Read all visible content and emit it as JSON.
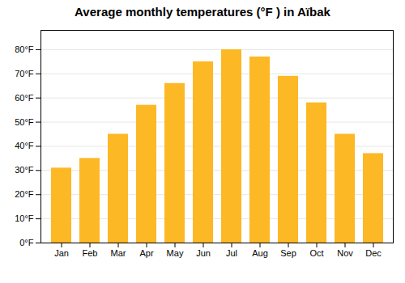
{
  "chart_data": {
    "type": "bar",
    "title": "Average monthly temperatures (°F ) in Aïbak",
    "categories": [
      "Jan",
      "Feb",
      "Mar",
      "Apr",
      "May",
      "Jun",
      "Jul",
      "Aug",
      "Sep",
      "Oct",
      "Nov",
      "Dec"
    ],
    "values": [
      31,
      35,
      45,
      57,
      66,
      75,
      80,
      77,
      69,
      58,
      45,
      37
    ],
    "color": "#FDB825",
    "ylim": [
      0,
      88
    ],
    "yticks": [
      {
        "value": 0,
        "label": "0°F"
      },
      {
        "value": 10,
        "label": "10°F"
      },
      {
        "value": 20,
        "label": "20°F"
      },
      {
        "value": 30,
        "label": "30°F"
      },
      {
        "value": 40,
        "label": "40°F"
      },
      {
        "value": 50,
        "label": "50°F"
      },
      {
        "value": 60,
        "label": "60°F"
      },
      {
        "value": 70,
        "label": "70°F"
      },
      {
        "value": 80,
        "label": "80°F"
      }
    ],
    "grid": true
  }
}
